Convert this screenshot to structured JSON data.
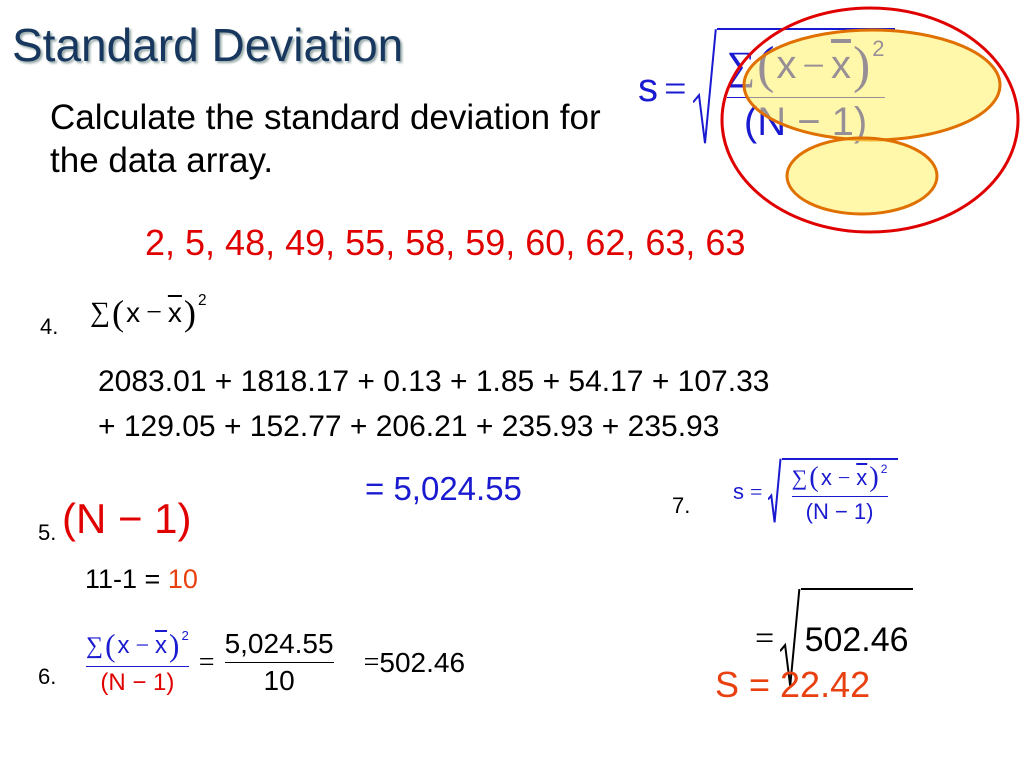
{
  "title": "Standard Deviation",
  "instruction": "Calculate the standard deviation for the data array.",
  "data_array": "2, 5, 48, 49, 55, 58, 59, 60, 62, 63, 63",
  "formula": {
    "s": "s",
    "eq": "=",
    "sigma": "∑",
    "open": "(",
    "x": "x",
    "minus": "−",
    "xbar": "x",
    "close": ")",
    "power": "2",
    "denominator": "(N − 1)"
  },
  "steps": [
    {
      "number": "4.",
      "lines": [
        "2083.01 + 1818.17 + 0.13 + 1.85 + 54.17 + 107.33",
        "+ 129.05 + 152.77 + 206.21 + 235.93 + 235.93"
      ],
      "result": "= 5,024.55"
    },
    {
      "number": "5.",
      "work": "11-1 =",
      "result": "10"
    },
    {
      "number": "6.",
      "numerator": "5,024.55",
      "denominator": "10",
      "result": "502.46"
    },
    {
      "number": "7.",
      "radicand": "502.46",
      "result": "S = 22.42"
    }
  ]
}
